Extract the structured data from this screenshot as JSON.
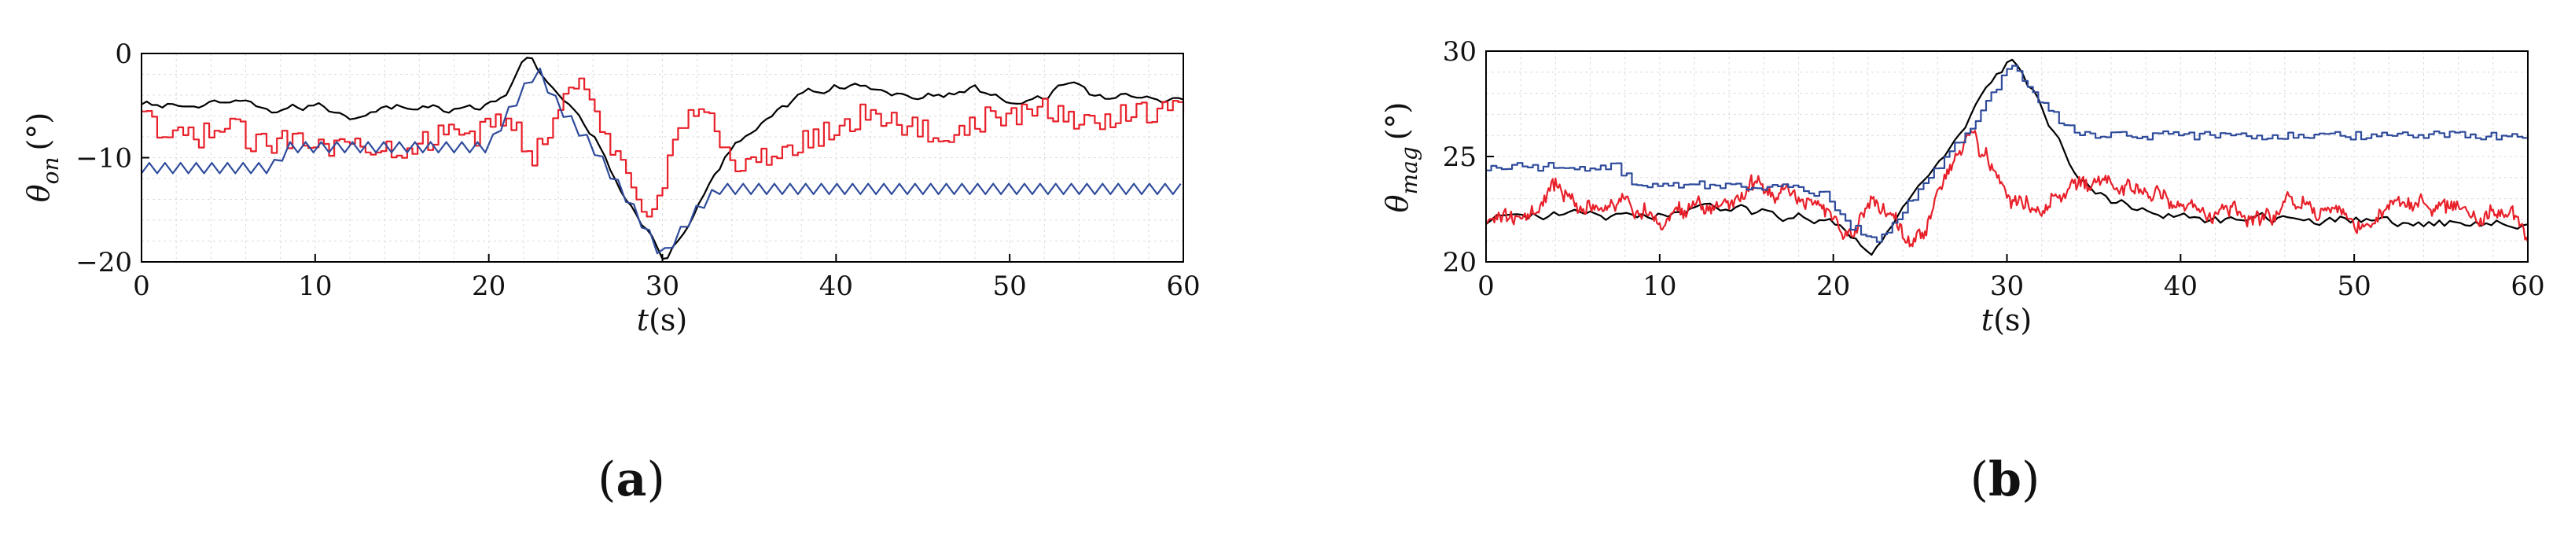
{
  "chart_data": [
    {
      "type": "line",
      "panel_label": "a",
      "xlabel": "t",
      "xunit": "(s)",
      "ylabel_main": "θ",
      "ylabel_sub": "on",
      "yunit": "(°)",
      "xlim": [
        0,
        60
      ],
      "ylim": [
        -20,
        0
      ],
      "xticks": [
        0,
        10,
        20,
        30,
        40,
        50,
        60
      ],
      "yticks": [
        -20,
        -10,
        0
      ],
      "grid": true,
      "series": [
        {
          "color": "#000000",
          "style": "jagged",
          "amp": 0.7,
          "x": [
            0,
            2,
            4,
            6,
            8,
            10,
            12,
            14,
            16,
            18,
            20,
            21,
            22.3,
            24,
            26,
            28,
            30.2,
            32,
            34,
            36,
            38,
            40,
            42,
            44,
            46,
            48,
            50,
            52,
            53.5,
            55,
            57,
            59,
            60
          ],
          "y": [
            -5,
            -5,
            -5,
            -5,
            -5.5,
            -5,
            -6,
            -5,
            -5,
            -5.5,
            -5,
            -4,
            0,
            -4,
            -8,
            -14,
            -20,
            -15,
            -9,
            -6,
            -4,
            -3,
            -3.5,
            -4,
            -4,
            -3.5,
            -4.5,
            -4,
            -2.5,
            -4.5,
            -4,
            -4.5,
            -4
          ]
        },
        {
          "color": "#e8202a",
          "style": "step",
          "amp": 1.2,
          "x": [
            0,
            1,
            3,
            5,
            7,
            9,
            11,
            13,
            15,
            17,
            19,
            21,
            22.5,
            24,
            25,
            27,
            29,
            30,
            31,
            32,
            33,
            34,
            36,
            38,
            40,
            42,
            44,
            46,
            48,
            50,
            52,
            54,
            56,
            58,
            60
          ],
          "y": [
            -6,
            -8,
            -8,
            -7,
            -9,
            -7.5,
            -9,
            -8.5,
            -9,
            -8,
            -8,
            -6,
            -10,
            -5,
            -2.5,
            -9,
            -15,
            -12,
            -6,
            -6,
            -7,
            -11,
            -10,
            -8.5,
            -7,
            -5.5,
            -7,
            -8,
            -6.5,
            -6,
            -5.5,
            -6.5,
            -6,
            -5.5,
            -5
          ]
        },
        {
          "color": "#2f4b9b",
          "style": "zigzag",
          "amp": 0.5,
          "x": [
            0,
            7.5,
            8.5,
            10,
            14,
            18,
            20,
            21,
            22.8,
            24,
            26,
            28,
            30,
            32,
            33.2,
            34,
            40,
            50,
            60
          ],
          "y": [
            -11,
            -11,
            -9,
            -9,
            -9,
            -9,
            -9,
            -6,
            -1.5,
            -5,
            -9,
            -14,
            -19.5,
            -15,
            -13,
            -13,
            -13,
            -13,
            -13
          ]
        }
      ]
    },
    {
      "type": "line",
      "panel_label": "b",
      "xlabel": "t",
      "xunit": "(s)",
      "ylabel_main": "θ",
      "ylabel_sub": "mag",
      "yunit": "(°)",
      "xlim": [
        0,
        60
      ],
      "ylim": [
        20,
        30
      ],
      "xticks": [
        0,
        10,
        20,
        30,
        40,
        50,
        60
      ],
      "yticks": [
        20,
        25,
        30
      ],
      "grid": true,
      "series": [
        {
          "color": "#000000",
          "style": "jagged",
          "amp": 0.45,
          "x": [
            0,
            4,
            8,
            12,
            16,
            20,
            21.5,
            22.3,
            24,
            26,
            28,
            30.3,
            32,
            34,
            36,
            38,
            40,
            44,
            48,
            52,
            56,
            60
          ],
          "y": [
            22,
            22.3,
            22,
            22.5,
            22.3,
            22,
            21,
            20.6,
            22.5,
            24.5,
            27,
            29.7,
            27.5,
            24,
            23,
            22.5,
            22,
            22,
            22,
            22,
            21.8,
            22
          ]
        },
        {
          "color": "#e8202a",
          "style": "noisy",
          "amp": 0.8,
          "x": [
            0,
            2,
            4,
            6,
            8,
            10,
            12,
            14,
            16,
            18,
            20,
            21.2,
            22.3,
            23.3,
            24.6,
            26,
            28,
            29,
            30,
            32,
            34,
            36,
            38,
            40,
            42,
            44,
            46,
            48,
            50,
            52,
            54,
            56,
            58,
            60
          ],
          "y": [
            22,
            22,
            23.5,
            22.5,
            22.8,
            22,
            22.5,
            23,
            23.5,
            23,
            22.3,
            21,
            23,
            22,
            20.3,
            23,
            26.5,
            24.5,
            23,
            22.5,
            23.5,
            24,
            23.5,
            22.5,
            22.3,
            22.5,
            23,
            22.5,
            22,
            22.2,
            22.6,
            22.5,
            22,
            21.5
          ]
        },
        {
          "color": "#2f4b9b",
          "style": "step",
          "amp": 0.2,
          "x": [
            0,
            4,
            7.5,
            8.5,
            12,
            16,
            18,
            19.5,
            20.5,
            22.5,
            24,
            26,
            28,
            30.2,
            32,
            34,
            34.5,
            40,
            50,
            60
          ],
          "y": [
            24.5,
            24.5,
            24.5,
            23.7,
            23.7,
            23.5,
            23.5,
            23.2,
            22,
            20.8,
            22.5,
            24.5,
            26.5,
            29.3,
            27.5,
            26,
            26,
            26,
            26,
            26
          ]
        }
      ]
    }
  ]
}
